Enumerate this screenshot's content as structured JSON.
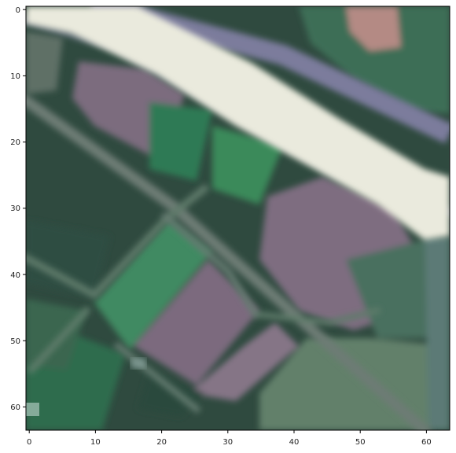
{
  "image": {
    "kind": "satellite-image-patch",
    "description_colors": {
      "forest_dark": "#2f4a3f",
      "field_green": "#3d7a5a",
      "bright_green": "#3f8a60",
      "bare_soil": "#7d6f80",
      "road_white": "#eeeee2",
      "track_gray": "#6a7b72",
      "grass_light": "#5e7d68"
    }
  },
  "axes": {
    "x_ticks": [
      "0",
      "10",
      "20",
      "30",
      "40",
      "50",
      "60"
    ],
    "y_ticks": [
      "0",
      "10",
      "20",
      "30",
      "40",
      "50",
      "60"
    ],
    "x_range": [
      0,
      64
    ],
    "y_range": [
      0,
      64
    ]
  }
}
